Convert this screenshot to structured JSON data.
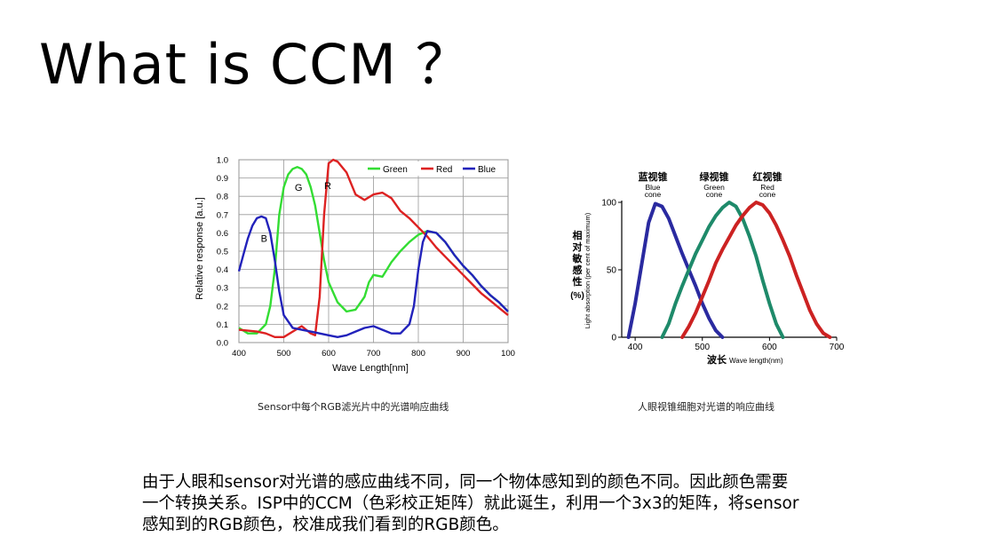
{
  "title": "What is CCM ？",
  "captions": {
    "left": "Sensor中每个RGB滤光片中的光谱响应曲线",
    "right": "人眼视锥细胞对光谱的响应曲线"
  },
  "body_lines": [
    "由于人眼和sensor对光谱的感应曲线不同，同一个物体感知到的颜色不同。因此颜色需要",
    "一个转换关系。ISP中的CCM（色彩校正矩阵）就此诞生，利用一个3x3的矩阵，将sensor",
    "感知到的RGB颜色，校准成我们看到的RGB颜色。"
  ],
  "chart_data": [
    {
      "type": "line",
      "xlabel": "Wave Length[nm]",
      "ylabel": "Relative response [a.u.]",
      "xlim": [
        400,
        1000
      ],
      "ylim": [
        0,
        1.0
      ],
      "x_ticks": [
        "400",
        "500",
        "600",
        "700",
        "800",
        "900",
        "100"
      ],
      "y_ticks": [
        "0.0",
        "0.1",
        "0.2",
        "0.3",
        "0.4",
        "0.5",
        "0.6",
        "0.7",
        "0.8",
        "0.9",
        "1.0"
      ],
      "grid": true,
      "legend": "top-right",
      "annotations": [
        "G",
        "R",
        "B"
      ],
      "series": [
        {
          "name": "Green",
          "color": "#33dd33",
          "x": [
            400,
            420,
            440,
            460,
            470,
            480,
            490,
            500,
            510,
            520,
            530,
            540,
            550,
            560,
            570,
            580,
            590,
            600,
            620,
            640,
            660,
            680,
            690,
            700,
            720,
            740,
            760,
            780,
            800,
            820,
            840,
            860,
            880,
            900,
            920,
            940,
            960,
            980,
            1000
          ],
          "y": [
            0.08,
            0.05,
            0.05,
            0.1,
            0.2,
            0.4,
            0.7,
            0.85,
            0.92,
            0.95,
            0.96,
            0.95,
            0.92,
            0.85,
            0.75,
            0.6,
            0.45,
            0.33,
            0.22,
            0.17,
            0.18,
            0.25,
            0.33,
            0.37,
            0.36,
            0.44,
            0.5,
            0.55,
            0.59,
            0.61,
            0.6,
            0.55,
            0.48,
            0.42,
            0.37,
            0.31,
            0.26,
            0.22,
            0.17
          ]
        },
        {
          "name": "Red",
          "color": "#dd2222",
          "x": [
            400,
            440,
            460,
            480,
            500,
            520,
            540,
            560,
            570,
            580,
            590,
            600,
            610,
            620,
            640,
            660,
            680,
            700,
            720,
            740,
            760,
            780,
            800,
            820,
            840,
            860,
            880,
            900,
            920,
            940,
            960,
            980,
            1000
          ],
          "y": [
            0.07,
            0.06,
            0.05,
            0.03,
            0.03,
            0.06,
            0.09,
            0.05,
            0.04,
            0.25,
            0.7,
            0.98,
            1.0,
            0.99,
            0.93,
            0.81,
            0.78,
            0.81,
            0.82,
            0.79,
            0.72,
            0.68,
            0.63,
            0.58,
            0.52,
            0.47,
            0.42,
            0.37,
            0.32,
            0.27,
            0.23,
            0.19,
            0.15
          ]
        },
        {
          "name": "Blue",
          "color": "#2222bb",
          "x": [
            400,
            410,
            420,
            430,
            440,
            450,
            460,
            470,
            480,
            490,
            500,
            520,
            540,
            560,
            580,
            600,
            620,
            640,
            660,
            680,
            700,
            720,
            740,
            760,
            780,
            790,
            800,
            810,
            820,
            840,
            860,
            880,
            900,
            920,
            940,
            960,
            980,
            1000
          ],
          "y": [
            0.39,
            0.48,
            0.57,
            0.64,
            0.68,
            0.69,
            0.68,
            0.6,
            0.45,
            0.28,
            0.15,
            0.08,
            0.07,
            0.06,
            0.05,
            0.04,
            0.03,
            0.04,
            0.06,
            0.08,
            0.09,
            0.07,
            0.05,
            0.05,
            0.1,
            0.2,
            0.4,
            0.55,
            0.61,
            0.6,
            0.55,
            0.48,
            0.42,
            0.37,
            0.31,
            0.26,
            0.22,
            0.17
          ]
        }
      ]
    },
    {
      "type": "line",
      "xlabel": "波长 Wave length(nm)",
      "ylabel_cn": "相对敏感性(%)",
      "ylabel_en": "Light absorption (per cent of maximum)",
      "xlim": [
        380,
        700
      ],
      "ylim": [
        0,
        100
      ],
      "x_ticks": [
        "400",
        "500",
        "600",
        "700"
      ],
      "y_ticks": [
        "0",
        "50",
        "100"
      ],
      "grid": false,
      "series": [
        {
          "name": "蓝视锥 Blue cone",
          "label_cn": "蓝视锥",
          "label_en": [
            "Blue",
            "cone"
          ],
          "color": "#2a2aa0",
          "x": [
            390,
            400,
            410,
            420,
            430,
            440,
            450,
            460,
            470,
            480,
            490,
            500,
            510,
            520,
            530
          ],
          "y": [
            0,
            25,
            55,
            85,
            99,
            97,
            88,
            75,
            62,
            50,
            38,
            25,
            14,
            5,
            0
          ]
        },
        {
          "name": "绿视锥 Green cone",
          "label_cn": "绿视锥",
          "label_en": [
            "Green",
            "cone"
          ],
          "color": "#1e8a6a",
          "x": [
            440,
            450,
            460,
            470,
            480,
            490,
            500,
            510,
            520,
            530,
            540,
            550,
            560,
            570,
            580,
            590,
            600,
            610,
            620
          ],
          "y": [
            0,
            10,
            25,
            38,
            50,
            62,
            72,
            82,
            90,
            96,
            100,
            97,
            88,
            75,
            60,
            42,
            25,
            10,
            0
          ]
        },
        {
          "name": "红视锥 Red cone",
          "label_cn": "红视锥",
          "label_en": [
            "Red",
            "cone"
          ],
          "color": "#cc2222",
          "x": [
            470,
            480,
            490,
            500,
            510,
            520,
            530,
            540,
            550,
            560,
            570,
            580,
            590,
            600,
            610,
            620,
            630,
            640,
            650,
            660,
            670,
            680,
            690
          ],
          "y": [
            0,
            8,
            18,
            30,
            42,
            55,
            65,
            74,
            83,
            90,
            96,
            100,
            98,
            92,
            83,
            72,
            60,
            46,
            33,
            20,
            10,
            3,
            0
          ]
        }
      ]
    }
  ]
}
